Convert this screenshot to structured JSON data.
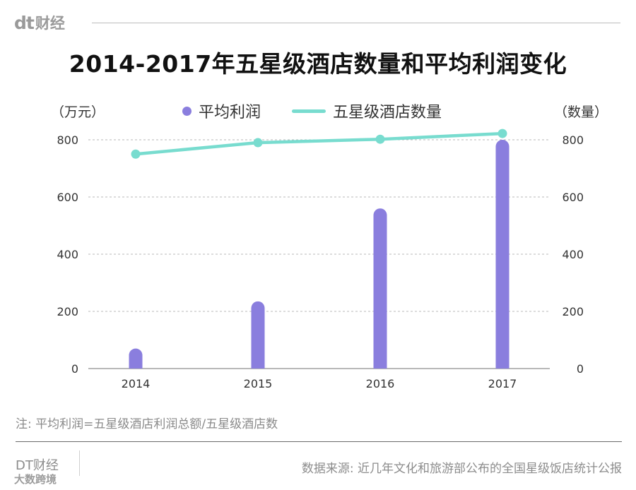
{
  "brand": {
    "mark": "dt",
    "name": "财经"
  },
  "title": "2014-2017年五星级酒店数量和平均利润变化",
  "chart_data": {
    "type": "bar",
    "title": "2014-2017年五星级酒店数量和平均利润变化",
    "categories": [
      "2014",
      "2015",
      "2016",
      "2017"
    ],
    "left_axis_label": "（万元）",
    "right_axis_label": "（数量）",
    "ylim": [
      0,
      800
    ],
    "y_ticks": [
      "0",
      "200",
      "400",
      "600",
      "800"
    ],
    "y2lim": [
      0,
      800
    ],
    "y2_ticks": [
      "0",
      "200",
      "400",
      "600",
      "800"
    ],
    "grid": true,
    "legend_position": "top",
    "series": [
      {
        "name": "平均利润",
        "type": "bar",
        "axis": "left",
        "color": "#8a7ede",
        "values": [
          70,
          235,
          560,
          800
        ]
      },
      {
        "name": "五星级酒店数量",
        "type": "line",
        "axis": "right",
        "color": "#78dccf",
        "values": [
          750,
          790,
          802,
          822
        ]
      }
    ]
  },
  "note": "注: 平均利润=五星级酒店利润总额/五星级酒店数",
  "footer": {
    "brand": "DT财经",
    "watermark": "大数跨境",
    "source": "数据来源: 近几年文化和旅游部公布的全国星级饭店统计公报"
  }
}
